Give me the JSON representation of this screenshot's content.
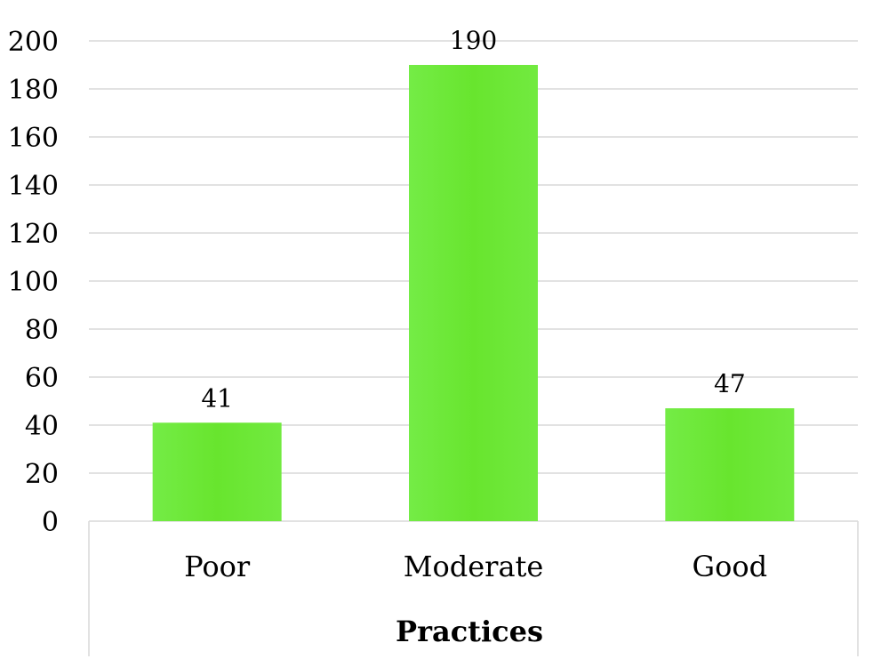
{
  "chart_data": {
    "type": "bar",
    "categories": [
      "Poor",
      "Moderate",
      "Good"
    ],
    "values": [
      41,
      190,
      47
    ],
    "data_labels": [
      "41",
      "190",
      "47"
    ],
    "xlabel": "Practices",
    "ylabel": "",
    "ylim": [
      0,
      200
    ],
    "yticks": [
      "0",
      "20",
      "40",
      "60",
      "80",
      "100",
      "120",
      "140",
      "160",
      "180",
      "200"
    ],
    "grid": true,
    "legend": "none",
    "bar_color": "#6ee83a"
  }
}
